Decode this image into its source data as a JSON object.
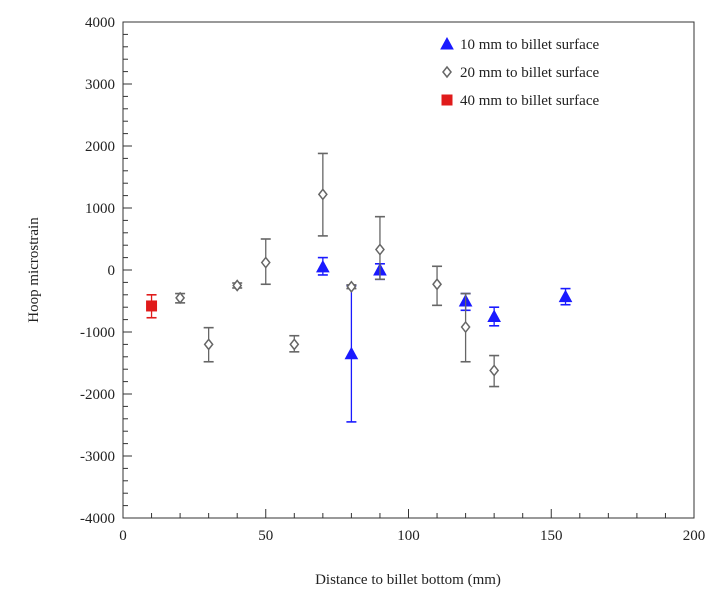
{
  "chart_data": {
    "type": "scatter",
    "title": "",
    "xlabel": "Distance to billet bottom (mm)",
    "ylabel": "Hoop microstrain",
    "xlim": [
      0,
      200
    ],
    "ylim": [
      -4000,
      4000
    ],
    "xticks": [
      "0",
      "50",
      "100",
      "150",
      "200"
    ],
    "yticks": [
      "4000",
      "3000",
      "2000",
      "1000",
      "0",
      "-1000",
      "-2000",
      "-3000",
      "-4000"
    ],
    "grid": false,
    "legend_position": "top-right",
    "series": [
      {
        "name": "10 mm to billet surface",
        "marker": "triangle",
        "color": "#1a1aff",
        "points": [
          {
            "x": 70,
            "y": 50,
            "lo": -80,
            "hi": 200
          },
          {
            "x": 80,
            "y": -1350,
            "lo": -2450,
            "hi": -250
          },
          {
            "x": 90,
            "y": 0,
            "lo": -150,
            "hi": 100
          },
          {
            "x": 120,
            "y": -500,
            "lo": -650,
            "hi": -380
          },
          {
            "x": 130,
            "y": -750,
            "lo": -900,
            "hi": -600
          },
          {
            "x": 155,
            "y": -430,
            "lo": -560,
            "hi": -300
          }
        ]
      },
      {
        "name": "20 mm to billet surface",
        "marker": "diamond",
        "color": "#666666",
        "points": [
          {
            "x": 20,
            "y": -450,
            "lo": -530,
            "hi": -380
          },
          {
            "x": 30,
            "y": -1200,
            "lo": -1480,
            "hi": -930
          },
          {
            "x": 40,
            "y": -250,
            "lo": -290,
            "hi": -210
          },
          {
            "x": 50,
            "y": 120,
            "lo": -230,
            "hi": 500
          },
          {
            "x": 60,
            "y": -1200,
            "lo": -1320,
            "hi": -1060
          },
          {
            "x": 70,
            "y": 1220,
            "lo": 550,
            "hi": 1880
          },
          {
            "x": 80,
            "y": -270,
            "lo": -300,
            "hi": -240
          },
          {
            "x": 90,
            "y": 330,
            "lo": -150,
            "hi": 860
          },
          {
            "x": 110,
            "y": -230,
            "lo": -570,
            "hi": 60
          },
          {
            "x": 120,
            "y": -920,
            "lo": -1480,
            "hi": -380
          },
          {
            "x": 130,
            "y": -1620,
            "lo": -1880,
            "hi": -1380
          }
        ]
      },
      {
        "name": "40 mm to billet surface",
        "marker": "square",
        "color": "#e01b1b",
        "points": [
          {
            "x": 10,
            "y": -580,
            "lo": -770,
            "hi": -400
          }
        ]
      }
    ]
  }
}
